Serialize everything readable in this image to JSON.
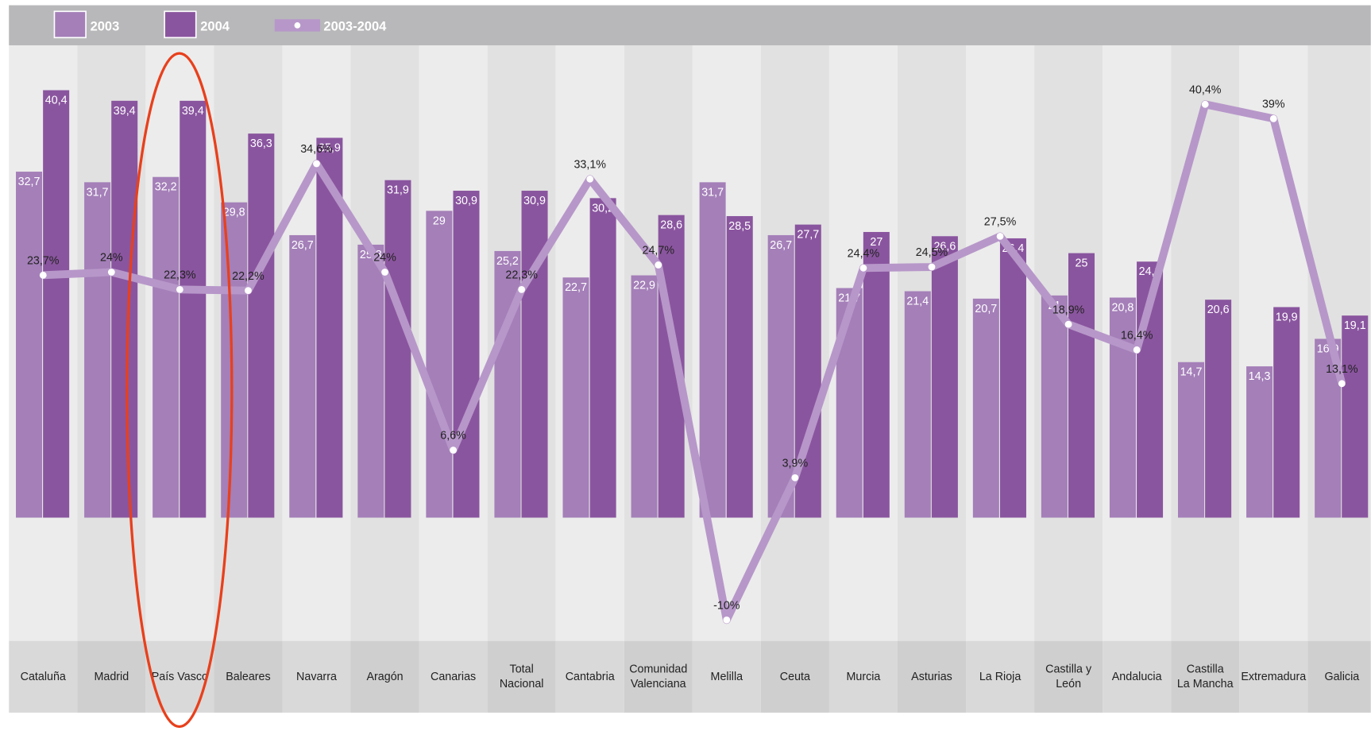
{
  "chart_data": {
    "type": "bar",
    "categories": [
      "Cataluña",
      "Madrid",
      "País Vasco",
      "Baleares",
      "Navarra",
      "Aragón",
      "Canarias",
      "Total\nNacional",
      "Cantabria",
      "Comunidad\nValenciana",
      "Melilla",
      "Ceuta",
      "Murcia",
      "Asturias",
      "La Rioja",
      "Castilla y\nLeón",
      "Andalucia",
      "Castilla\nLa Mancha",
      "Extremadura",
      "Galicia"
    ],
    "series": [
      {
        "name": "2003",
        "color": "#a47fb8",
        "values": [
          32.7,
          31.7,
          32.2,
          29.8,
          26.7,
          25.8,
          29,
          25.2,
          22.7,
          22.9,
          31.7,
          26.7,
          21.7,
          21.4,
          20.7,
          21,
          20.8,
          14.7,
          14.3,
          16.9
        ],
        "value_labels": [
          "32,7",
          "31,7",
          "32,2",
          "29,8",
          "26,7",
          "25,8",
          "29",
          "25,2",
          "22,7",
          "22,9",
          "31,7",
          "26,7",
          "21,7",
          "21,4",
          "20,7",
          "21",
          "20,8",
          "14,7",
          "14,3",
          "16,9"
        ]
      },
      {
        "name": "2004",
        "color": "#8a559f",
        "values": [
          40.4,
          39.4,
          39.4,
          36.3,
          35.9,
          31.9,
          30.9,
          30.9,
          30.2,
          28.6,
          28.5,
          27.7,
          27,
          26.6,
          26.4,
          25,
          24.2,
          20.6,
          19.9,
          19.1
        ],
        "value_labels": [
          "40,4",
          "39,4",
          "39,4",
          "36,3",
          "35,9",
          "31,9",
          "30,9",
          "30,9",
          "30,2",
          "28,6",
          "28,5",
          "27,7",
          "27",
          "26,6",
          "26,4",
          "25",
          "24,2",
          "20,6",
          "19,9",
          "19,1"
        ]
      },
      {
        "name": "2003-2004",
        "type": "line",
        "color": "#b797c9",
        "values": [
          23.7,
          24,
          22.3,
          22.2,
          34.6,
          24,
          6.6,
          22.3,
          33.1,
          24.7,
          -10,
          3.9,
          24.4,
          24.5,
          27.5,
          18.9,
          16.4,
          40.4,
          39,
          13.1
        ],
        "value_labels": [
          "23,7%",
          "24%",
          "22,3%",
          "22,2%",
          "34,6%",
          "24%",
          "6,6%",
          "22,3%",
          "33,1%",
          "24,7%",
          "-10%",
          "3,9%",
          "24,4%",
          "24,5%",
          "27,5%",
          "18,9%",
          "16,4%",
          "40,4%",
          "39%",
          "13,1%"
        ]
      }
    ]
  }
}
